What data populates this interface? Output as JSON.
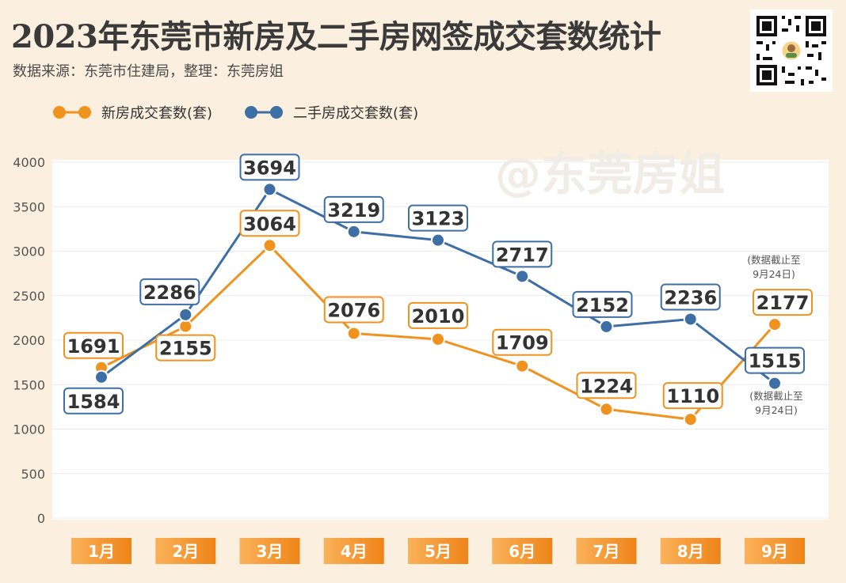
{
  "header": {
    "title": "2023年东莞市新房及二手房网签成交套数统计",
    "subtitle": "数据来源：东莞市住建局，整理：东莞房姐"
  },
  "watermark": "@东莞房姐",
  "colors": {
    "new": "#f0921e",
    "second": "#3d6ea5",
    "background": "#fbf0df",
    "plot_bg": "#ffffff"
  },
  "chart_data": {
    "type": "line",
    "categories": [
      "1月",
      "2月",
      "3月",
      "4月",
      "5月",
      "6月",
      "7月",
      "8月",
      "9月"
    ],
    "series": [
      {
        "name": "新房成交套数(套)",
        "values": [
          1691,
          2155,
          3064,
          2076,
          2010,
          1709,
          1224,
          1110,
          2177
        ]
      },
      {
        "name": "二手房成交套数(套)",
        "values": [
          1584,
          2286,
          3694,
          3219,
          3123,
          2717,
          2152,
          2236,
          1515
        ]
      }
    ],
    "ylim": [
      0,
      4000
    ],
    "yticks": [
      0,
      500,
      1000,
      1500,
      2000,
      2500,
      3000,
      3500,
      4000
    ],
    "grid": true,
    "legend_position": "top-left",
    "annotations": [
      {
        "series": "新房成交套数(套)",
        "category": "9月",
        "lines": [
          "(数据截止至",
          "9月24日)"
        ]
      },
      {
        "series": "二手房成交套数(套)",
        "category": "9月",
        "lines": [
          "(数据截止至",
          "9月24日)"
        ]
      }
    ]
  }
}
